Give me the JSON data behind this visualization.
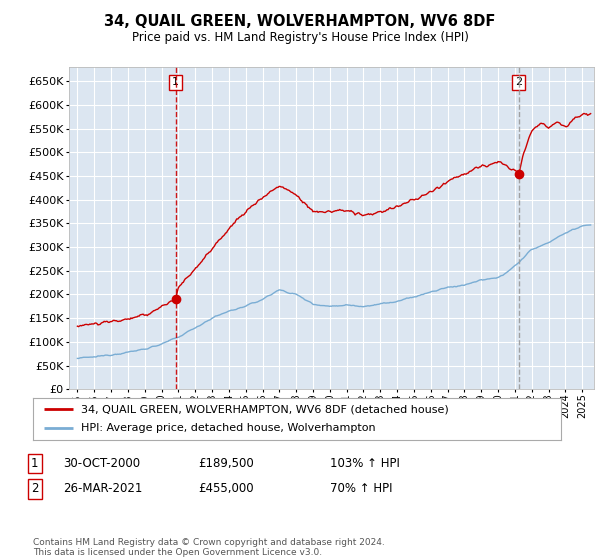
{
  "title": "34, QUAIL GREEN, WOLVERHAMPTON, WV6 8DF",
  "subtitle": "Price paid vs. HM Land Registry's House Price Index (HPI)",
  "ylabel_ticks": [
    0,
    50000,
    100000,
    150000,
    200000,
    250000,
    300000,
    350000,
    400000,
    450000,
    500000,
    550000,
    600000,
    650000
  ],
  "ylim": [
    0,
    680000
  ],
  "xlim_start": 1994.5,
  "xlim_end": 2025.7,
  "background_color": "#ffffff",
  "plot_bg_color": "#dce6f1",
  "grid_color": "#ffffff",
  "sale1_x": 2000.83,
  "sale1_y": 189500,
  "sale1_label": "1",
  "sale1_date": "30-OCT-2000",
  "sale1_price": "£189,500",
  "sale1_pct": "103% ↑ HPI",
  "sale2_x": 2021.23,
  "sale2_y": 455000,
  "sale2_label": "2",
  "sale2_date": "26-MAR-2021",
  "sale2_price": "£455,000",
  "sale2_pct": "70% ↑ HPI",
  "red_line_color": "#cc0000",
  "blue_line_color": "#7aadd4",
  "marker_box_color": "#cc0000",
  "sale1_vline_color": "#cc0000",
  "sale1_vline_style": "--",
  "sale2_vline_color": "#999999",
  "sale2_vline_style": "--",
  "legend_label_red": "34, QUAIL GREEN, WOLVERHAMPTON, WV6 8DF (detached house)",
  "legend_label_blue": "HPI: Average price, detached house, Wolverhampton",
  "footer": "Contains HM Land Registry data © Crown copyright and database right 2024.\nThis data is licensed under the Open Government Licence v3.0.",
  "hpi_nodes_x": [
    1995,
    1996,
    1997,
    1998,
    1999,
    2000,
    2001,
    2002,
    2003,
    2004,
    2005,
    2006,
    2007,
    2008,
    2009,
    2010,
    2011,
    2012,
    2013,
    2014,
    2015,
    2016,
    2017,
    2018,
    2019,
    2020,
    2021,
    2022,
    2023,
    2024,
    2025
  ],
  "hpi_nodes_y": [
    65000,
    68000,
    73000,
    78000,
    85000,
    95000,
    110000,
    130000,
    150000,
    165000,
    175000,
    190000,
    210000,
    200000,
    180000,
    175000,
    178000,
    175000,
    180000,
    185000,
    195000,
    205000,
    215000,
    220000,
    230000,
    235000,
    260000,
    295000,
    310000,
    330000,
    345000
  ],
  "prop_nodes_x": [
    1995,
    1996,
    1997,
    1998,
    1999,
    2000,
    2000.83,
    2001,
    2002,
    2003,
    2004,
    2005,
    2006,
    2007,
    2008,
    2009,
    2010,
    2011,
    2012,
    2013,
    2014,
    2015,
    2016,
    2017,
    2018,
    2019,
    2020,
    2021.23,
    2021.5,
    2022,
    2022.5,
    2023,
    2023.5,
    2024,
    2024.5,
    2025
  ],
  "prop_nodes_y": [
    135000,
    138000,
    143000,
    148000,
    155000,
    175000,
    189500,
    215000,
    255000,
    295000,
    340000,
    375000,
    405000,
    430000,
    410000,
    375000,
    375000,
    378000,
    365000,
    375000,
    385000,
    400000,
    415000,
    440000,
    455000,
    470000,
    480000,
    455000,
    500000,
    545000,
    560000,
    555000,
    565000,
    555000,
    570000,
    580000
  ]
}
